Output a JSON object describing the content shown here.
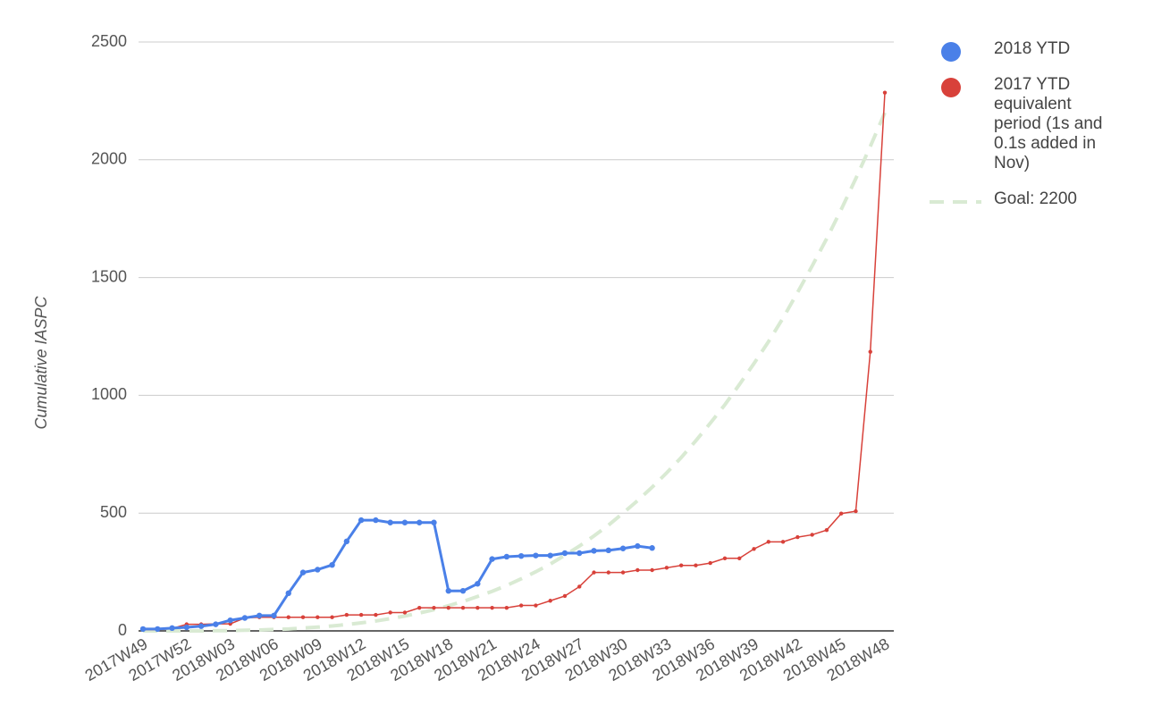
{
  "chart_data": {
    "type": "line",
    "y_label": "Cumulative IASPC",
    "categories": [
      "2017W49",
      null,
      null,
      "2017W52",
      null,
      null,
      "2018W03",
      null,
      null,
      "2018W06",
      null,
      null,
      "2018W09",
      null,
      null,
      "2018W12",
      null,
      null,
      "2018W15",
      null,
      null,
      "2018W18",
      null,
      null,
      "2018W21",
      null,
      null,
      "2018W24",
      null,
      null,
      "2018W27",
      null,
      null,
      "2018W30",
      null,
      null,
      "2018W33",
      null,
      null,
      "2018W36",
      null,
      null,
      "2018W39",
      null,
      null,
      "2018W42",
      null,
      null,
      "2018W45",
      null,
      null,
      "2018W48"
    ],
    "ylim": [
      0,
      2500
    ],
    "yticks": [
      0,
      500,
      1000,
      1500,
      2000,
      2500
    ],
    "grid": true,
    "legend": "right",
    "series": [
      {
        "name": "2018 YTD",
        "color": "#4a80e8",
        "dashed": false,
        "values": [
          8,
          8,
          12,
          15,
          20,
          28,
          45,
          55,
          65,
          65,
          160,
          248,
          260,
          280,
          380,
          470,
          470,
          460,
          460,
          460,
          460,
          170,
          170,
          200,
          305,
          315,
          318,
          320,
          320,
          330,
          330,
          340,
          342,
          350,
          360,
          352,
          null,
          null,
          null,
          null,
          null,
          null,
          null,
          null,
          null,
          null,
          null,
          null,
          null,
          null,
          null,
          null
        ]
      },
      {
        "name": "2017 YTD equivalent period (1s and 0.1s added in Nov)",
        "color": "#d8413a",
        "dashed": false,
        "values": [
          5,
          5,
          10,
          28,
          28,
          30,
          30,
          55,
          58,
          58,
          58,
          58,
          58,
          58,
          68,
          68,
          68,
          78,
          78,
          98,
          98,
          98,
          98,
          98,
          98,
          98,
          108,
          108,
          128,
          148,
          188,
          248,
          248,
          248,
          258,
          258,
          268,
          278,
          278,
          288,
          308,
          308,
          348,
          378,
          378,
          398,
          408,
          428,
          498,
          508,
          1185,
          2285
        ]
      },
      {
        "name": "Goal: 2200",
        "color": "#d9ead3",
        "dashed": true,
        "values": [
          0,
          0,
          0,
          0,
          0,
          1,
          1,
          3,
          4,
          6,
          8,
          12,
          16,
          21,
          27,
          34,
          42,
          52,
          63,
          76,
          90,
          107,
          125,
          146,
          168,
          193,
          221,
          251,
          284,
          321,
          360,
          403,
          449,
          500,
          553,
          610,
          671,
          736,
          807,
          882,
          960,
          1046,
          1135,
          1228,
          1328,
          1437,
          1549,
          1665,
          1789,
          1920,
          2057,
          2200
        ]
      }
    ]
  }
}
